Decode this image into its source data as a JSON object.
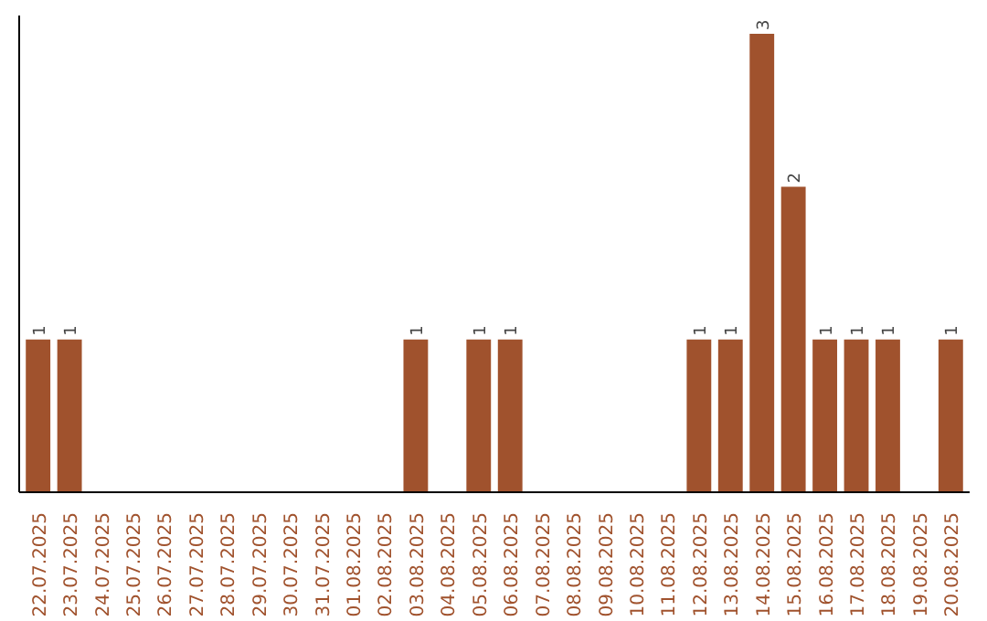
{
  "chart_data": {
    "type": "bar",
    "categories": [
      "22.07.2025",
      "23.07.2025",
      "24.07.2025",
      "25.07.2025",
      "26.07.2025",
      "27.07.2025",
      "28.07.2025",
      "29.07.2025",
      "30.07.2025",
      "31.07.2025",
      "01.08.2025",
      "02.08.2025",
      "03.08.2025",
      "04.08.2025",
      "05.08.2025",
      "06.08.2025",
      "07.08.2025",
      "08.08.2025",
      "09.08.2025",
      "10.08.2025",
      "11.08.2025",
      "12.08.2025",
      "13.08.2025",
      "14.08.2025",
      "15.08.2025",
      "16.08.2025",
      "17.08.2025",
      "18.08.2025",
      "19.08.2025",
      "20.08.2025"
    ],
    "values": [
      1,
      1,
      0,
      0,
      0,
      0,
      0,
      0,
      0,
      0,
      0,
      0,
      1,
      0,
      1,
      1,
      0,
      0,
      0,
      0,
      0,
      1,
      1,
      3,
      2,
      1,
      1,
      1,
      0,
      1
    ],
    "value_labels": [
      "1",
      "1",
      null,
      null,
      null,
      null,
      null,
      null,
      null,
      null,
      null,
      null,
      "1",
      null,
      "1",
      "1",
      null,
      null,
      null,
      null,
      null,
      "1",
      "1",
      "3",
      "2",
      "1",
      "1",
      "1",
      null,
      "1"
    ],
    "color": "#a0522d",
    "grid": false,
    "tick_labels": "x"
  }
}
